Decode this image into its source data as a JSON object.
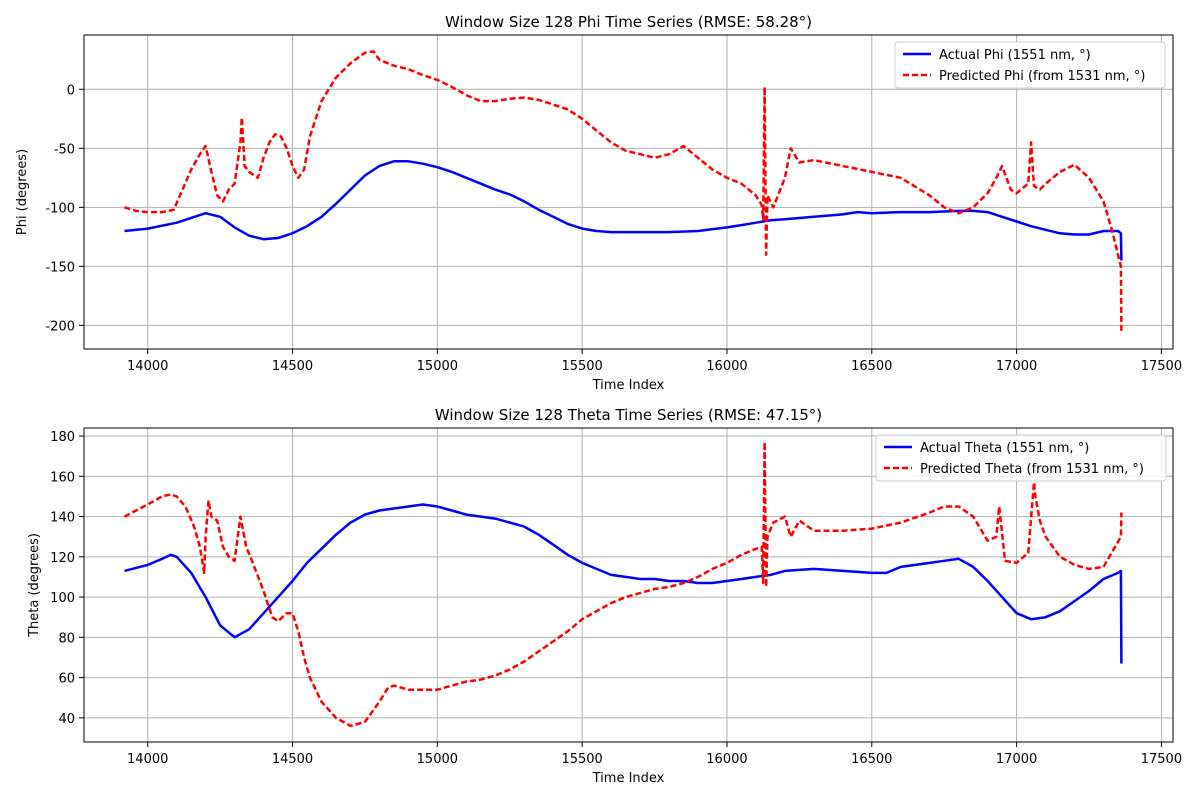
{
  "chart_data": [
    {
      "type": "line",
      "title": "Window Size 128 Phi Time Series (RMSE: 58.28°)",
      "xlabel": "Time Index",
      "ylabel": "Phi (degrees)",
      "xlim": [
        13780,
        17540
      ],
      "ylim": [
        -220,
        46
      ],
      "xticks": [
        14000,
        14500,
        15000,
        15500,
        16000,
        16500,
        17000,
        17500
      ],
      "yticks": [
        -200,
        -150,
        -100,
        -50,
        0
      ],
      "grid": true,
      "legend_position": "top-right",
      "series": [
        {
          "name": "Actual Phi (1551 nm, °)",
          "color": "#0000ff",
          "style": "solid",
          "x": [
            13920,
            14000,
            14100,
            14200,
            14250,
            14300,
            14350,
            14400,
            14450,
            14500,
            14550,
            14600,
            14650,
            14700,
            14750,
            14800,
            14850,
            14900,
            14950,
            15000,
            15050,
            15100,
            15150,
            15200,
            15250,
            15300,
            15350,
            15400,
            15450,
            15500,
            15550,
            15600,
            15700,
            15800,
            15900,
            16000,
            16050,
            16100,
            16150,
            16200,
            16300,
            16400,
            16450,
            16500,
            16600,
            16700,
            16800,
            16850,
            16900,
            16950,
            17000,
            17050,
            17100,
            17150,
            17200,
            17250,
            17300,
            17350,
            17360,
            17362
          ],
          "y": [
            -120,
            -118,
            -113,
            -105,
            -108,
            -117,
            -124,
            -127,
            -126,
            -122,
            -116,
            -108,
            -97,
            -85,
            -73,
            -65,
            -61,
            -61,
            -63,
            -66,
            -70,
            -75,
            -80,
            -85,
            -89,
            -95,
            -102,
            -108,
            -114,
            -118,
            -120,
            -121,
            -121,
            -121,
            -120,
            -117,
            -115,
            -113,
            -111,
            -110,
            -108,
            -106,
            -104,
            -105,
            -104,
            -104,
            -103,
            -103,
            -104,
            -108,
            -112,
            -116,
            -119,
            -122,
            -123,
            -123,
            -120,
            -120,
            -122,
            -145
          ]
        },
        {
          "name": "Predicted Phi (from 1531 nm, °)",
          "color": "#ff0000",
          "style": "dashed",
          "x": [
            13920,
            13960,
            14000,
            14050,
            14090,
            14120,
            14150,
            14180,
            14200,
            14220,
            14240,
            14260,
            14280,
            14300,
            14320,
            14325,
            14335,
            14350,
            14380,
            14400,
            14420,
            14440,
            14460,
            14480,
            14500,
            14520,
            14540,
            14560,
            14600,
            14650,
            14700,
            14750,
            14780,
            14800,
            14850,
            14900,
            14950,
            15000,
            15050,
            15100,
            15150,
            15200,
            15250,
            15300,
            15350,
            15400,
            15450,
            15500,
            15550,
            15600,
            15650,
            15700,
            15750,
            15800,
            15850,
            15900,
            15950,
            16000,
            16050,
            16100,
            16120,
            16125,
            16130,
            16135,
            16140,
            16160,
            16200,
            16220,
            16240,
            16250,
            16300,
            16400,
            16500,
            16600,
            16700,
            16750,
            16800,
            16850,
            16900,
            16930,
            16950,
            16980,
            17000,
            17040,
            17050,
            17060,
            17080,
            17100,
            17150,
            17200,
            17250,
            17300,
            17330,
            17350,
            17360,
            17362
          ],
          "y": [
            -100,
            -103,
            -104,
            -104,
            -102,
            -85,
            -68,
            -55,
            -48,
            -70,
            -90,
            -95,
            -85,
            -80,
            -45,
            -24,
            -65,
            -70,
            -75,
            -58,
            -45,
            -38,
            -40,
            -50,
            -65,
            -75,
            -68,
            -40,
            -10,
            10,
            22,
            31,
            32,
            25,
            20,
            17,
            12,
            8,
            2,
            -5,
            -10,
            -10,
            -8,
            -7,
            -9,
            -13,
            -17,
            -25,
            -35,
            -45,
            -52,
            -55,
            -58,
            -55,
            -48,
            -58,
            -68,
            -75,
            -80,
            -90,
            -98,
            -110,
            2,
            -140,
            -90,
            -100,
            -75,
            -50,
            -58,
            -62,
            -60,
            -65,
            -70,
            -75,
            -90,
            -100,
            -105,
            -100,
            -88,
            -75,
            -65,
            -85,
            -88,
            -80,
            -45,
            -82,
            -85,
            -80,
            -70,
            -64,
            -75,
            -95,
            -120,
            -140,
            -150,
            -205
          ]
        }
      ]
    },
    {
      "type": "line",
      "title": "Window Size 128 Theta Time Series (RMSE: 47.15°)",
      "xlabel": "Time Index",
      "ylabel": "Theta (degrees)",
      "xlim": [
        13780,
        17540
      ],
      "ylim": [
        28,
        184
      ],
      "xticks": [
        14000,
        14500,
        15000,
        15500,
        16000,
        16500,
        17000,
        17500
      ],
      "yticks": [
        40,
        60,
        80,
        100,
        120,
        140,
        160,
        180
      ],
      "grid": true,
      "legend_position": "top-right",
      "series": [
        {
          "name": "Actual Theta (1551 nm, °)",
          "color": "#0000ff",
          "style": "solid",
          "x": [
            13920,
            14000,
            14050,
            14080,
            14100,
            14150,
            14200,
            14250,
            14300,
            14350,
            14400,
            14450,
            14500,
            14550,
            14600,
            14650,
            14700,
            14750,
            14800,
            14850,
            14900,
            14950,
            15000,
            15050,
            15100,
            15150,
            15200,
            15250,
            15300,
            15350,
            15400,
            15450,
            15500,
            15550,
            15600,
            15650,
            15700,
            15750,
            15800,
            15850,
            15900,
            15950,
            16000,
            16050,
            16100,
            16150,
            16200,
            16300,
            16400,
            16500,
            16550,
            16600,
            16650,
            16700,
            16750,
            16800,
            16850,
            16900,
            16950,
            17000,
            17050,
            17100,
            17150,
            17200,
            17250,
            17300,
            17350,
            17360,
            17362
          ],
          "y": [
            113,
            116,
            119,
            121,
            120,
            112,
            100,
            86,
            80,
            84,
            92,
            100,
            108,
            117,
            124,
            131,
            137,
            141,
            143,
            144,
            145,
            146,
            145,
            143,
            141,
            140,
            139,
            137,
            135,
            131,
            126,
            121,
            117,
            114,
            111,
            110,
            109,
            109,
            108,
            108,
            107,
            107,
            108,
            109,
            110,
            111,
            113,
            114,
            113,
            112,
            112,
            115,
            116,
            117,
            118,
            119,
            115,
            108,
            100,
            92,
            89,
            90,
            93,
            98,
            103,
            109,
            112,
            113,
            67
          ]
        },
        {
          "name": "Predicted Theta (from 1531 nm, °)",
          "color": "#ff0000",
          "style": "dashed",
          "x": [
            13920,
            13960,
            14000,
            14050,
            14080,
            14100,
            14130,
            14160,
            14180,
            14195,
            14200,
            14210,
            14220,
            14240,
            14260,
            14280,
            14300,
            14320,
            14340,
            14360,
            14400,
            14430,
            14450,
            14480,
            14500,
            14520,
            14540,
            14560,
            14600,
            14650,
            14700,
            14750,
            14800,
            14830,
            14850,
            14900,
            14950,
            15000,
            15050,
            15100,
            15150,
            15200,
            15250,
            15300,
            15350,
            15400,
            15450,
            15500,
            15550,
            15600,
            15650,
            15700,
            15750,
            15800,
            15850,
            15900,
            15950,
            16000,
            16050,
            16100,
            16120,
            16125,
            16130,
            16135,
            16140,
            16160,
            16200,
            16220,
            16250,
            16300,
            16400,
            16500,
            16600,
            16700,
            16750,
            16800,
            16850,
            16900,
            16930,
            16940,
            16960,
            17000,
            17040,
            17060,
            17065,
            17080,
            17100,
            17150,
            17200,
            17250,
            17300,
            17340,
            17360,
            17362
          ],
          "y": [
            140,
            143,
            146,
            150,
            151,
            150,
            145,
            135,
            125,
            112,
            130,
            148,
            140,
            138,
            125,
            120,
            118,
            140,
            125,
            118,
            103,
            90,
            88,
            92,
            92,
            83,
            70,
            60,
            48,
            40,
            36,
            38,
            48,
            55,
            56,
            54,
            54,
            54,
            56,
            58,
            59,
            61,
            64,
            68,
            73,
            78,
            83,
            89,
            93,
            97,
            100,
            102,
            104,
            105,
            107,
            110,
            114,
            117,
            121,
            124,
            125,
            107,
            177,
            105,
            130,
            137,
            140,
            130,
            138,
            133,
            133,
            134,
            137,
            142,
            145,
            145,
            140,
            128,
            130,
            145,
            118,
            117,
            122,
            157,
            150,
            138,
            130,
            120,
            116,
            114,
            115,
            125,
            130,
            142
          ]
        }
      ]
    }
  ]
}
